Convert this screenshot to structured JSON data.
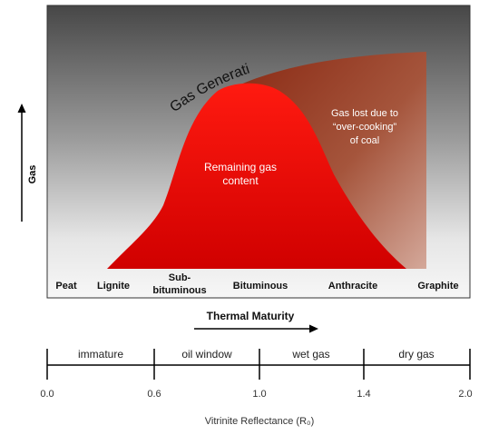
{
  "diagram": {
    "y_axis_label": "Gas",
    "curve_label": "Gas Generation",
    "remaining_label": [
      "Remaining gas",
      "content"
    ],
    "lost_label": [
      "Gas lost due to",
      "“over-cooking”",
      "of coal"
    ],
    "coal_ranks": [
      {
        "lines": [
          "Peat"
        ]
      },
      {
        "lines": [
          "Lignite"
        ]
      },
      {
        "lines": [
          "Sub-",
          "bituminous"
        ]
      },
      {
        "lines": [
          "Bituminous"
        ]
      },
      {
        "lines": [
          "Anthracite"
        ]
      },
      {
        "lines": [
          "Graphite"
        ]
      }
    ],
    "maturity_label": "Thermal Maturity",
    "zones": [
      "immature",
      "oil window",
      "wet gas",
      "dry gas"
    ],
    "ticks": [
      "0.0",
      "0.6",
      "1.0",
      "1.4",
      "2.0"
    ],
    "x_axis_label": "Vitrinite Reflectance (R₀)",
    "colors": {
      "panel_dark": "#4a4a4a",
      "panel_light": "#f4f4f4",
      "remaining_fill": "#e00000",
      "lost_fill": "#9a3a22",
      "text_dark": "#111111",
      "text_light": "#ffffff"
    }
  }
}
